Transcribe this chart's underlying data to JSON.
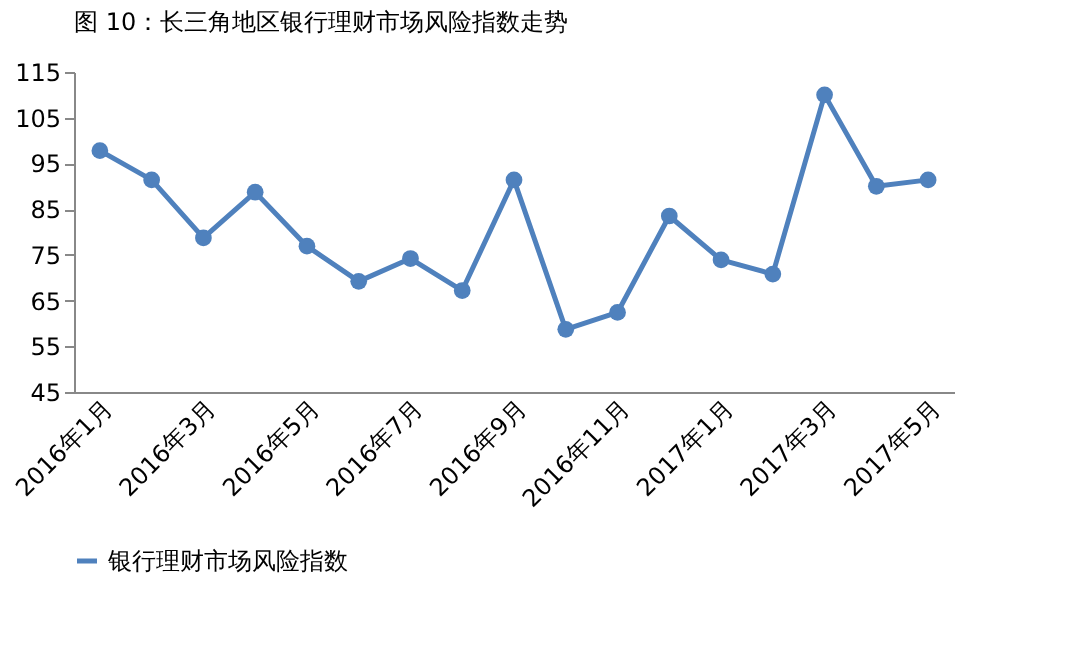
{
  "chart_data": {
    "type": "line",
    "title": "图 10：长三角地区银行理财市场风险指数走势",
    "categories": [
      "2016年1月",
      null,
      "2016年3月",
      null,
      "2016年5月",
      null,
      "2016年7月",
      null,
      "2016年9月",
      null,
      "2016年11月",
      null,
      "2017年1月",
      null,
      "2017年3月",
      null,
      "2017年5月"
    ],
    "series": [
      {
        "name": "银行理财市场风险指数",
        "color": "#4f81bd",
        "values": [
          97.8,
          91.4,
          78.7,
          88.7,
          76.9,
          69.2,
          74.2,
          67.2,
          91.4,
          58.7,
          62.4,
          83.5,
          73.9,
          70.8,
          110,
          90.0,
          91.4
        ]
      }
    ],
    "ylim": [
      45,
      115
    ],
    "yticks": [
      45,
      55,
      65,
      75,
      85,
      95,
      105,
      115
    ],
    "grid": false,
    "legend": "bottom",
    "marker": "circle",
    "line_style": "solid"
  }
}
